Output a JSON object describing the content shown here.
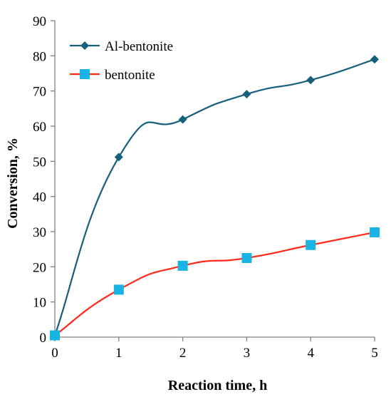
{
  "chart_data": {
    "type": "line",
    "title": "",
    "xlabel": "Reaction time, h",
    "ylabel": "Conversion, %",
    "xlim": [
      0,
      5
    ],
    "ylim": [
      0,
      90
    ],
    "xticks": [
      "0",
      "1",
      "2",
      "3",
      "4",
      "5"
    ],
    "yticks": [
      "0",
      "10",
      "20",
      "30",
      "40",
      "50",
      "60",
      "70",
      "80",
      "90"
    ],
    "grid": false,
    "legend_position": "top-left",
    "series": [
      {
        "name": "Al-bentonite",
        "color": "#17607d",
        "marker": "diamond",
        "x": [
          0,
          1,
          2,
          3,
          4,
          5
        ],
        "y": [
          0.5,
          51.2,
          61.9,
          69.1,
          73.1,
          79.0
        ]
      },
      {
        "name": "bentonite",
        "color": "#ff2a1a",
        "marker_color": "#19b4e6",
        "marker": "square",
        "x": [
          0,
          1,
          2,
          3,
          4,
          5
        ],
        "y": [
          0.5,
          13.5,
          20.3,
          22.5,
          26.2,
          29.8
        ]
      }
    ]
  }
}
